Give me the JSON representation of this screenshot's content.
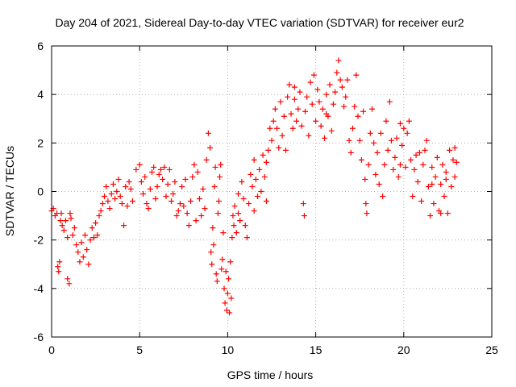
{
  "chart_data": {
    "type": "scatter",
    "title": "Day 204 of 2021, Sidereal Day-to-day VTEC variation (SDTVAR) for receiver eur2",
    "xlabel": "GPS time / hours",
    "ylabel": "SDTVAR / TECUs",
    "xlim": [
      0,
      25
    ],
    "ylim": [
      -6,
      6
    ],
    "xticks": [
      0,
      5,
      10,
      15,
      20,
      25
    ],
    "xtick_labels": [
      "0",
      "5",
      "10",
      "15",
      "20",
      "25"
    ],
    "yticks": [
      -6,
      -4,
      -2,
      0,
      2,
      4,
      6
    ],
    "ytick_labels": [
      "-6",
      "-4",
      "-2",
      "0",
      "2",
      "4",
      "6"
    ],
    "grid": true,
    "marker": "+",
    "series": [
      {
        "name": "SDTVAR",
        "color": "#ff0000",
        "points": [
          [
            0.0,
            -0.8
          ],
          [
            0.1,
            -0.7
          ],
          [
            0.2,
            -1.0
          ],
          [
            0.3,
            -0.9
          ],
          [
            0.35,
            -3.1
          ],
          [
            0.4,
            -3.3
          ],
          [
            0.45,
            -2.9
          ],
          [
            0.5,
            -1.2
          ],
          [
            0.55,
            -0.9
          ],
          [
            0.6,
            -1.4
          ],
          [
            0.7,
            -1.6
          ],
          [
            0.8,
            -1.2
          ],
          [
            0.9,
            -1.9
          ],
          [
            0.9,
            -3.6
          ],
          [
            1.0,
            -3.8
          ],
          [
            1.05,
            -0.9
          ],
          [
            1.1,
            -1.1
          ],
          [
            1.2,
            -1.8
          ],
          [
            1.3,
            -1.5
          ],
          [
            1.4,
            -2.2
          ],
          [
            1.5,
            -2.5
          ],
          [
            1.6,
            -2.9
          ],
          [
            1.7,
            -2.1
          ],
          [
            1.8,
            -2.7
          ],
          [
            1.9,
            -1.8
          ],
          [
            2.0,
            -2.4
          ],
          [
            2.1,
            -3.0
          ],
          [
            2.2,
            -2.0
          ],
          [
            2.3,
            -1.5
          ],
          [
            2.4,
            -1.9
          ],
          [
            2.5,
            -1.3
          ],
          [
            2.6,
            -1.8
          ],
          [
            2.7,
            -1.0
          ],
          [
            2.8,
            -0.8
          ],
          [
            2.9,
            -0.5
          ],
          [
            3.0,
            -0.2
          ],
          [
            3.1,
            0.2
          ],
          [
            3.2,
            -0.4
          ],
          [
            3.3,
            -0.7
          ],
          [
            3.4,
            -0.1
          ],
          [
            3.5,
            0.3
          ],
          [
            3.6,
            -0.3
          ],
          [
            3.7,
            0.0
          ],
          [
            3.8,
            0.5
          ],
          [
            3.9,
            -0.2
          ],
          [
            4.0,
            -0.5
          ],
          [
            4.1,
            -1.4
          ],
          [
            4.2,
            0.2
          ],
          [
            4.3,
            -0.6
          ],
          [
            4.4,
            0.4
          ],
          [
            4.5,
            0.1
          ],
          [
            4.6,
            -0.4
          ],
          [
            4.8,
            0.9
          ],
          [
            5.0,
            1.1
          ],
          [
            5.1,
            0.4
          ],
          [
            5.2,
            -0.1
          ],
          [
            5.3,
            0.6
          ],
          [
            5.4,
            -0.5
          ],
          [
            5.5,
            -0.7
          ],
          [
            5.6,
            0.1
          ],
          [
            5.7,
            0.8
          ],
          [
            5.8,
            1.0
          ],
          [
            5.9,
            -0.3
          ],
          [
            6.0,
            0.2
          ],
          [
            6.1,
            0.7
          ],
          [
            6.2,
            0.9
          ],
          [
            6.3,
            0.5
          ],
          [
            6.4,
            1.0
          ],
          [
            6.5,
            -0.2
          ],
          [
            6.6,
            0.3
          ],
          [
            6.7,
            0.9
          ],
          [
            6.8,
            -0.4
          ],
          [
            6.9,
            -0.1
          ],
          [
            7.0,
            0.4
          ],
          [
            7.1,
            -1.0
          ],
          [
            7.2,
            -0.8
          ],
          [
            7.3,
            -0.5
          ],
          [
            7.4,
            0.2
          ],
          [
            7.5,
            -0.6
          ],
          [
            7.6,
            0.5
          ],
          [
            7.7,
            -0.9
          ],
          [
            7.8,
            -1.4
          ],
          [
            7.9,
            -0.4
          ],
          [
            8.0,
            0.6
          ],
          [
            8.1,
            1.1
          ],
          [
            8.2,
            -1.2
          ],
          [
            8.3,
            0.8
          ],
          [
            8.4,
            -0.3
          ],
          [
            8.5,
            -1.0
          ],
          [
            8.6,
            0.1
          ],
          [
            8.7,
            -0.7
          ],
          [
            8.8,
            1.3
          ],
          [
            8.9,
            2.4
          ],
          [
            9.0,
            1.8
          ],
          [
            9.05,
            -2.5
          ],
          [
            9.1,
            -3.0
          ],
          [
            9.15,
            -1.5
          ],
          [
            9.2,
            -2.2
          ],
          [
            9.25,
            0.2
          ],
          [
            9.3,
            1.0
          ],
          [
            9.35,
            -3.4
          ],
          [
            9.4,
            -3.7
          ],
          [
            9.45,
            -0.9
          ],
          [
            9.5,
            -0.4
          ],
          [
            9.55,
            0.6
          ],
          [
            9.6,
            1.1
          ],
          [
            9.65,
            -3.2
          ],
          [
            9.7,
            -2.8
          ],
          [
            9.75,
            -1.7
          ],
          [
            9.8,
            -4.0
          ],
          [
            9.85,
            -4.6
          ],
          [
            9.9,
            -3.3
          ],
          [
            9.95,
            -4.9
          ],
          [
            10.0,
            -4.2
          ],
          [
            10.05,
            -3.6
          ],
          [
            10.1,
            -5.0
          ],
          [
            10.15,
            -2.9
          ],
          [
            10.2,
            -4.4
          ],
          [
            10.25,
            -1.9
          ],
          [
            10.3,
            -1.0
          ],
          [
            10.35,
            -1.4
          ],
          [
            10.4,
            -0.6
          ],
          [
            10.5,
            -1.7
          ],
          [
            10.6,
            -0.9
          ],
          [
            10.7,
            -1.2
          ],
          [
            10.8,
            0.4
          ],
          [
            10.9,
            -0.3
          ],
          [
            11.0,
            -1.4
          ],
          [
            11.1,
            -1.9
          ],
          [
            11.2,
            -0.5
          ],
          [
            11.3,
            0.7
          ],
          [
            11.4,
            0.2
          ],
          [
            11.5,
            1.3
          ],
          [
            11.6,
            0.5
          ],
          [
            11.7,
            -0.2
          ],
          [
            11.8,
            0.9
          ],
          [
            11.9,
            0.0
          ],
          [
            12.0,
            1.5
          ],
          [
            12.1,
            0.6
          ],
          [
            12.2,
            1.2
          ],
          [
            12.3,
            1.7
          ],
          [
            12.4,
            2.6
          ],
          [
            12.5,
            2.1
          ],
          [
            12.6,
            2.9
          ],
          [
            12.7,
            3.4
          ],
          [
            12.8,
            2.6
          ],
          [
            12.9,
            1.8
          ],
          [
            13.0,
            3.7
          ],
          [
            13.1,
            2.3
          ],
          [
            13.2,
            3.1
          ],
          [
            13.3,
            1.7
          ],
          [
            13.4,
            3.9
          ],
          [
            13.5,
            4.4
          ],
          [
            13.6,
            3.2
          ],
          [
            13.7,
            2.6
          ],
          [
            13.8,
            3.8
          ],
          [
            13.9,
            2.9
          ],
          [
            14.0,
            3.4
          ],
          [
            14.1,
            4.1
          ],
          [
            14.2,
            2.7
          ],
          [
            14.3,
            -0.5
          ],
          [
            14.35,
            -1.0
          ],
          [
            14.4,
            3.3
          ],
          [
            14.5,
            3.9
          ],
          [
            14.6,
            2.3
          ],
          [
            14.7,
            4.5
          ],
          [
            14.8,
            3.6
          ],
          [
            14.9,
            4.8
          ],
          [
            15.0,
            2.9
          ],
          [
            15.1,
            4.2
          ],
          [
            15.2,
            3.7
          ],
          [
            15.3,
            2.7
          ],
          [
            15.4,
            3.4
          ],
          [
            15.5,
            2.2
          ],
          [
            15.6,
            4.0
          ],
          [
            15.7,
            3.1
          ],
          [
            15.8,
            4.4
          ],
          [
            15.9,
            2.5
          ],
          [
            16.0,
            3.6
          ],
          [
            16.1,
            4.1
          ],
          [
            16.2,
            4.9
          ],
          [
            16.3,
            5.4
          ],
          [
            16.4,
            4.6
          ],
          [
            16.5,
            4.3
          ],
          [
            16.6,
            3.5
          ],
          [
            16.7,
            3.9
          ],
          [
            16.8,
            4.6
          ],
          [
            16.9,
            2.1
          ],
          [
            17.0,
            1.6
          ],
          [
            17.1,
            2.6
          ],
          [
            17.2,
            3.5
          ],
          [
            17.3,
            4.8
          ],
          [
            17.4,
            3.1
          ],
          [
            17.5,
            2.1
          ],
          [
            17.6,
            1.3
          ],
          [
            17.7,
            3.3
          ],
          [
            17.8,
            0.5
          ],
          [
            17.85,
            -0.5
          ],
          [
            17.9,
            -0.9
          ],
          [
            18.0,
            1.1
          ],
          [
            18.1,
            2.4
          ],
          [
            18.2,
            3.4
          ],
          [
            18.3,
            2.0
          ],
          [
            18.4,
            0.7
          ],
          [
            18.5,
            1.6
          ],
          [
            18.6,
            0.3
          ],
          [
            18.7,
            2.4
          ],
          [
            18.8,
            -0.2
          ],
          [
            18.9,
            1.1
          ],
          [
            19.0,
            2.9
          ],
          [
            19.1,
            1.7
          ],
          [
            19.2,
            3.7
          ],
          [
            19.3,
            2.1
          ],
          [
            19.4,
            0.9
          ],
          [
            19.5,
            1.4
          ],
          [
            19.6,
            2.2
          ],
          [
            19.7,
            0.6
          ],
          [
            19.8,
            1.1
          ],
          [
            19.9,
            1.9
          ],
          [
            20.0,
            2.6
          ],
          [
            20.1,
            1.0
          ],
          [
            20.2,
            2.4
          ],
          [
            20.3,
            2.9
          ],
          [
            20.4,
            1.3
          ],
          [
            20.5,
            -0.2
          ],
          [
            20.6,
            0.9
          ],
          [
            20.7,
            1.5
          ],
          [
            20.8,
            0.4
          ],
          [
            20.9,
            1.6
          ],
          [
            21.0,
            -0.4
          ],
          [
            21.1,
            1.1
          ],
          [
            21.2,
            1.7
          ],
          [
            21.3,
            2.1
          ],
          [
            21.4,
            0.2
          ],
          [
            21.5,
            -1.0
          ],
          [
            21.6,
            1.0
          ],
          [
            21.7,
            -0.5
          ],
          [
            21.8,
            0.6
          ],
          [
            21.9,
            1.4
          ],
          [
            22.0,
            -0.8
          ],
          [
            22.1,
            0.3
          ],
          [
            22.2,
            1.1
          ],
          [
            22.3,
            -0.2
          ],
          [
            22.4,
            0.8
          ],
          [
            22.5,
            -0.9
          ],
          [
            22.6,
            1.7
          ],
          [
            22.7,
            0.2
          ],
          [
            22.8,
            1.3
          ],
          [
            22.9,
            0.6
          ],
          [
            23.0,
            1.2
          ],
          [
            10.6,
            -0.1
          ],
          [
            11.5,
            -0.8
          ],
          [
            12.2,
            -0.4
          ],
          [
            13.8,
            4.3
          ],
          [
            15.6,
            3.2
          ],
          [
            19.8,
            2.8
          ],
          [
            21.6,
            0.3
          ],
          [
            22.1,
            -0.9
          ],
          [
            22.4,
            0.5
          ],
          [
            22.9,
            1.8
          ]
        ]
      }
    ]
  }
}
